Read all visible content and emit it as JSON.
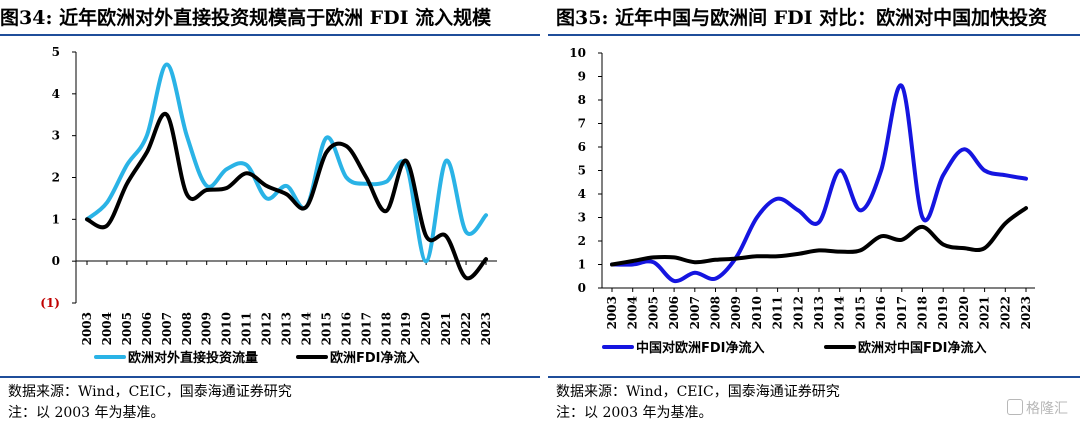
{
  "colors": {
    "light_blue": "#2ab3e6",
    "dark": "#000000",
    "blue": "#1515e0",
    "neg_red": "#c00000",
    "rule_blue": "#1f4e9a"
  },
  "left": {
    "title": "图34:  近年欧洲对外直接投资规模高于欧洲 FDI 流入规模",
    "source": "数据来源：Wind，CEIC，国泰海通证券研究",
    "note": "注：以 2003 年为基准。"
  },
  "right": {
    "title": "图35:  近年中国与欧洲间 FDI 对比：欧洲对中国加快投资",
    "source": "数据来源：Wind，CEIC，国泰海通证券研究",
    "note": "注：以 2003 年为基准。"
  },
  "watermark": {
    "text": "格隆汇"
  },
  "chart_data": [
    {
      "type": "line",
      "x": [
        "2003",
        "2004",
        "2005",
        "2006",
        "2007",
        "2008",
        "2009",
        "2010",
        "2011",
        "2012",
        "2013",
        "2014",
        "2015",
        "2016",
        "2017",
        "2018",
        "2019",
        "2020",
        "2021",
        "2022",
        "2023"
      ],
      "ylim": [
        -1,
        5
      ],
      "yticks": [
        -1,
        0,
        1,
        2,
        3,
        4,
        5
      ],
      "ytick_labels": [
        "(1)",
        "0",
        "1",
        "2",
        "3",
        "4",
        "5"
      ],
      "legend_position": "bottom",
      "series": [
        {
          "name": "欧洲对外直接投资流量",
          "color": "#2ab3e6",
          "values": [
            1.0,
            1.4,
            2.3,
            3.0,
            4.7,
            3.0,
            1.8,
            2.2,
            2.3,
            1.5,
            1.8,
            1.3,
            2.95,
            2.0,
            1.85,
            1.9,
            2.3,
            0.0,
            2.4,
            0.7,
            1.1
          ]
        },
        {
          "name": "欧洲FDI净流入",
          "color": "#000000",
          "values": [
            1.0,
            0.85,
            1.85,
            2.6,
            3.5,
            1.6,
            1.7,
            1.75,
            2.1,
            1.8,
            1.6,
            1.3,
            2.6,
            2.75,
            2.0,
            1.2,
            2.4,
            0.6,
            0.6,
            -0.4,
            0.05
          ]
        }
      ]
    },
    {
      "type": "line",
      "x": [
        "2003",
        "2004",
        "2005",
        "2006",
        "2007",
        "2008",
        "2009",
        "2010",
        "2011",
        "2012",
        "2013",
        "2014",
        "2015",
        "2016",
        "2017",
        "2018",
        "2019",
        "2020",
        "2021",
        "2022",
        "2023"
      ],
      "ylim": [
        0,
        10
      ],
      "yticks": [
        0,
        1,
        2,
        3,
        4,
        5,
        6,
        7,
        8,
        9,
        10
      ],
      "ytick_labels": [
        "0",
        "1",
        "2",
        "3",
        "4",
        "5",
        "6",
        "7",
        "8",
        "9",
        "10"
      ],
      "legend_position": "bottom",
      "series": [
        {
          "name": "中国对欧洲FDI净流入",
          "color": "#1515e0",
          "values": [
            1.0,
            1.0,
            1.1,
            0.3,
            0.65,
            0.4,
            1.3,
            3.0,
            3.8,
            3.3,
            2.8,
            5.0,
            3.3,
            5.0,
            8.6,
            3.0,
            4.8,
            5.9,
            5.0,
            4.8,
            4.65
          ]
        },
        {
          "name": "欧洲对中国FDI净流入",
          "color": "#000000",
          "values": [
            1.0,
            1.15,
            1.3,
            1.3,
            1.1,
            1.2,
            1.25,
            1.35,
            1.35,
            1.45,
            1.6,
            1.55,
            1.6,
            2.2,
            2.05,
            2.6,
            1.85,
            1.7,
            1.7,
            2.75,
            3.4
          ]
        }
      ]
    }
  ]
}
